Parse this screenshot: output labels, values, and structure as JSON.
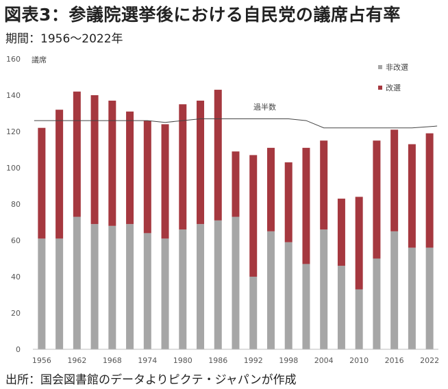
{
  "header": {
    "title": "図表3：参議院選挙後における自民党の議席占有率",
    "period": "期間：1956～2022年"
  },
  "footer": {
    "source": "出所：国会図書館のデータよりピクテ・ジャパンが作成"
  },
  "colors": {
    "non_reelected": "#a6a6a6",
    "reelected": "#a5383f",
    "majority_line": "#444444"
  },
  "chart_data": {
    "type": "bar",
    "stacked": true,
    "ylabel": "議席",
    "ylim": [
      0,
      160
    ],
    "yticks": [
      0,
      20,
      40,
      60,
      80,
      100,
      120,
      140,
      160
    ],
    "categories": [
      "1956",
      "1959",
      "1962",
      "1965",
      "1968",
      "1971",
      "1974",
      "1977",
      "1980",
      "1983",
      "1986",
      "1989",
      "1992",
      "1995",
      "1998",
      "2001",
      "2004",
      "2007",
      "2010",
      "2013",
      "2016",
      "2019",
      "2022"
    ],
    "xtick_labels": [
      "1956",
      "1962",
      "1968",
      "1974",
      "1980",
      "1986",
      "1992",
      "1998",
      "2004",
      "2010",
      "2016",
      "2022"
    ],
    "series": [
      {
        "name": "非改選",
        "values": [
          61,
          61,
          73,
          69,
          68,
          69,
          64,
          61,
          66,
          69,
          71,
          73,
          40,
          65,
          59,
          47,
          66,
          46,
          33,
          50,
          65,
          56,
          56
        ]
      },
      {
        "name": "改選",
        "values": [
          61,
          71,
          69,
          71,
          69,
          62,
          62,
          63,
          69,
          68,
          72,
          36,
          67,
          46,
          44,
          64,
          49,
          37,
          51,
          65,
          56,
          57,
          63
        ]
      }
    ],
    "majority_line": {
      "name": "過半数",
      "values": [
        126,
        126,
        126,
        126,
        126,
        126,
        126,
        125,
        126,
        127,
        127,
        127,
        127,
        127,
        127,
        126,
        122,
        122,
        122,
        122,
        122,
        122,
        123
      ]
    },
    "legend_position": "top-right"
  }
}
